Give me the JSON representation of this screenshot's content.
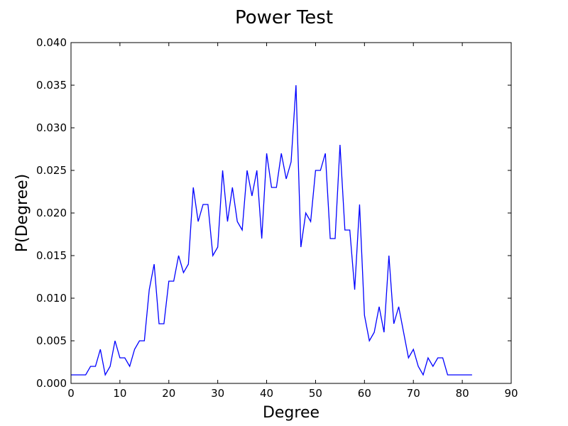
{
  "chart_data": {
    "type": "line",
    "title": "Power Test",
    "xlabel": "Degree",
    "ylabel": "P(Degree)",
    "xlim": [
      0,
      90
    ],
    "ylim": [
      0.0,
      0.04
    ],
    "grid": false,
    "x_ticks": [
      "0",
      "10",
      "20",
      "30",
      "40",
      "50",
      "60",
      "70",
      "80",
      "90"
    ],
    "y_ticks": [
      "0.000",
      "0.005",
      "0.010",
      "0.015",
      "0.020",
      "0.025",
      "0.030",
      "0.035",
      "0.040"
    ],
    "line_color": "#0000ff",
    "series": [
      {
        "x": [
          0,
          1,
          2,
          3,
          4,
          5,
          6,
          7,
          8,
          9,
          10,
          11,
          12,
          13,
          14,
          15,
          16,
          17,
          18,
          19,
          20,
          21,
          22,
          23,
          24,
          25,
          26,
          27,
          28,
          29,
          30,
          31,
          32,
          33,
          34,
          35,
          36,
          37,
          38,
          39,
          40,
          41,
          42,
          43,
          44,
          45,
          46,
          47,
          48,
          49,
          50,
          51,
          52,
          53,
          54,
          55,
          56,
          57,
          58,
          59,
          60,
          61,
          62,
          63,
          64,
          65,
          66,
          67,
          68,
          69,
          70,
          71,
          72,
          73,
          74,
          75,
          76,
          77,
          78,
          79,
          80,
          81,
          82
        ],
        "y": [
          0.001,
          0.001,
          0.001,
          0.001,
          0.002,
          0.002,
          0.004,
          0.001,
          0.002,
          0.005,
          0.003,
          0.003,
          0.002,
          0.004,
          0.005,
          0.005,
          0.011,
          0.014,
          0.007,
          0.007,
          0.012,
          0.012,
          0.015,
          0.013,
          0.014,
          0.023,
          0.019,
          0.021,
          0.021,
          0.015,
          0.016,
          0.025,
          0.019,
          0.023,
          0.019,
          0.018,
          0.025,
          0.022,
          0.025,
          0.017,
          0.027,
          0.023,
          0.023,
          0.027,
          0.024,
          0.026,
          0.035,
          0.016,
          0.02,
          0.019,
          0.025,
          0.025,
          0.027,
          0.017,
          0.017,
          0.028,
          0.018,
          0.018,
          0.011,
          0.021,
          0.008,
          0.005,
          0.006,
          0.009,
          0.006,
          0.015,
          0.007,
          0.009,
          0.006,
          0.003,
          0.004,
          0.002,
          0.001,
          0.003,
          0.002,
          0.003,
          0.003,
          0.001,
          0.001,
          0.001,
          0.001,
          0.001,
          0.001
        ]
      }
    ]
  }
}
